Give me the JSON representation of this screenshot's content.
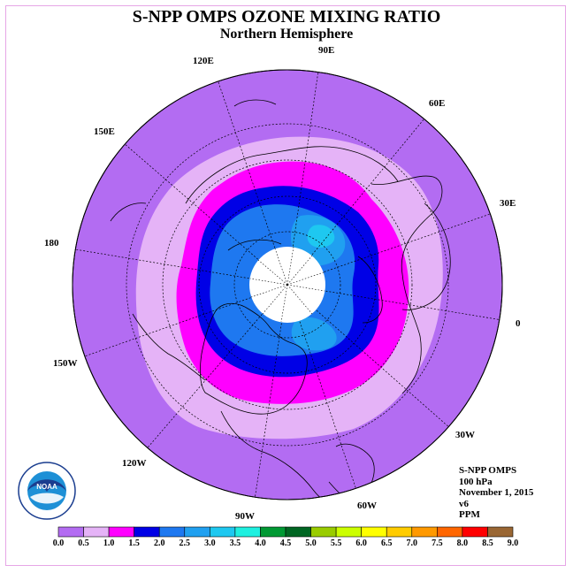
{
  "title": "S-NPP OMPS OZONE MIXING RATIO",
  "subtitle": "Northern Hemisphere",
  "longitude_labels": {
    "lon_90e": "90E",
    "lon_120e": "120E",
    "lon_60e": "60E",
    "lon_150e": "150E",
    "lon_30e": "30E",
    "lon_180": "180",
    "lon_0": "0",
    "lon_150w": "150W",
    "lon_30w": "30W",
    "lon_120w": "120W",
    "lon_60w": "60W",
    "lon_90w": "90W"
  },
  "info": {
    "instrument": "S-NPP OMPS",
    "level": "100 hPa",
    "date": "November 1, 2015",
    "version": "v6",
    "units": "PPM"
  },
  "logo": {
    "text": "NOAA",
    "ring_text": "NATIONAL OCEANIC AND ATMOSPHERIC ADMINISTRATION · U.S. DEPARTMENT OF COMMERCE"
  },
  "colorbar": {
    "ticks": [
      "0.0",
      "0.5",
      "1.0",
      "1.5",
      "2.0",
      "2.5",
      "3.0",
      "3.5",
      "4.0",
      "4.5",
      "5.0",
      "5.5",
      "6.0",
      "6.5",
      "7.0",
      "7.5",
      "8.0",
      "8.5",
      "9.0"
    ],
    "colors": [
      "#b36cf2",
      "#e5b3f7",
      "#ff00ff",
      "#0000e6",
      "#1e78f0",
      "#20a0f0",
      "#1ec8f0",
      "#1ef0e0",
      "#009933",
      "#006622",
      "#99cc00",
      "#ccff00",
      "#ffff00",
      "#ffcc00",
      "#ff9900",
      "#ff6600",
      "#ff0000",
      "#996633"
    ]
  },
  "map_colors": {
    "background_disk": "#b36cf2",
    "band_0_5_1_0": "#e5b3f7",
    "band_1_0_1_5": "#ff00ff",
    "band_1_5_2_0": "#0000e6",
    "band_2_0_2_5": "#1e78f0",
    "band_2_5_3_0": "#20a0f0",
    "band_3_0_3_5": "#1ec8f0",
    "missing_data": "#ffffff"
  }
}
